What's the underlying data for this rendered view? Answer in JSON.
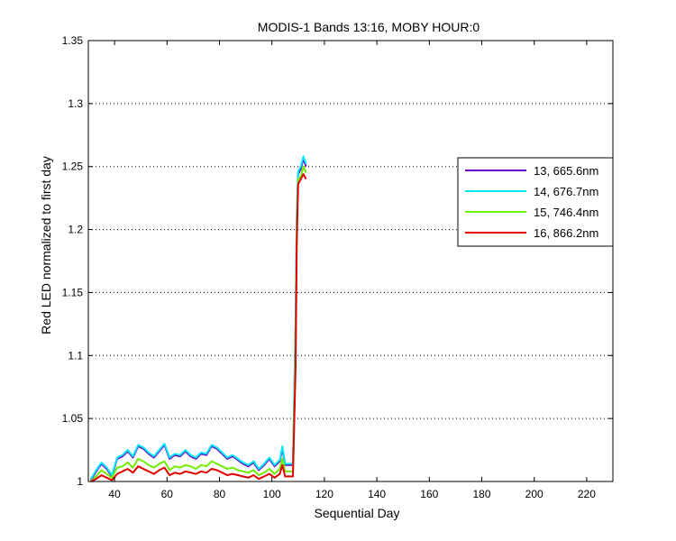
{
  "chart_data": {
    "type": "line",
    "title": "MODIS-1 Bands 13:16, MOBY HOUR:0",
    "xlabel": "Sequential Day",
    "ylabel": "Red LED normalized to first day",
    "xlim": [
      30,
      230
    ],
    "ylim": [
      1,
      1.35
    ],
    "xticks": [
      40,
      60,
      80,
      100,
      120,
      140,
      160,
      180,
      200,
      220
    ],
    "yticks": [
      1,
      1.05,
      1.1,
      1.15,
      1.2,
      1.25,
      1.3,
      1.35
    ],
    "xtick_labels": [
      "40",
      "60",
      "80",
      "100",
      "120",
      "140",
      "160",
      "180",
      "200",
      "220"
    ],
    "ytick_labels": [
      "1",
      "1.05",
      "1.1",
      "1.15",
      "1.2",
      "1.25",
      "1.3",
      "1.35"
    ],
    "grid": "y-dotted",
    "legend_position": "right",
    "x": [
      31,
      33,
      35,
      37,
      39,
      41,
      43,
      45,
      47,
      49,
      51,
      53,
      55,
      57,
      59,
      61,
      63,
      65,
      67,
      69,
      71,
      73,
      75,
      77,
      79,
      81,
      83,
      85,
      87,
      89,
      91,
      93,
      95,
      97,
      99,
      101,
      103,
      104,
      105,
      106,
      107,
      108,
      109,
      109.5,
      110,
      111,
      112,
      113
    ],
    "series": [
      {
        "name": "13, 665.6nm",
        "color": "#7000c8",
        "values": [
          1.001,
          1.008,
          1.014,
          1.01,
          1.004,
          1.018,
          1.02,
          1.024,
          1.019,
          1.028,
          1.026,
          1.022,
          1.019,
          1.024,
          1.029,
          1.018,
          1.021,
          1.02,
          1.024,
          1.02,
          1.018,
          1.022,
          1.021,
          1.028,
          1.026,
          1.022,
          1.018,
          1.02,
          1.017,
          1.014,
          1.012,
          1.015,
          1.009,
          1.013,
          1.018,
          1.012,
          1.016,
          1.026,
          1.013,
          1.013,
          1.013,
          1.013,
          1.12,
          1.21,
          1.244,
          1.248,
          1.256,
          1.25
        ]
      },
      {
        "name": "14, 676.7nm",
        "color": "#00e8f8",
        "values": [
          1.002,
          1.009,
          1.015,
          1.011,
          1.005,
          1.019,
          1.021,
          1.025,
          1.02,
          1.029,
          1.027,
          1.023,
          1.02,
          1.025,
          1.03,
          1.019,
          1.022,
          1.021,
          1.025,
          1.021,
          1.019,
          1.023,
          1.022,
          1.029,
          1.027,
          1.023,
          1.019,
          1.021,
          1.018,
          1.015,
          1.013,
          1.016,
          1.01,
          1.014,
          1.019,
          1.013,
          1.017,
          1.028,
          1.014,
          1.014,
          1.014,
          1.014,
          1.125,
          1.215,
          1.246,
          1.25,
          1.258,
          1.252
        ]
      },
      {
        "name": "15, 746.4nm",
        "color": "#70ee00",
        "values": [
          1.0,
          1.004,
          1.009,
          1.006,
          1.003,
          1.011,
          1.012,
          1.015,
          1.011,
          1.018,
          1.016,
          1.013,
          1.011,
          1.014,
          1.016,
          1.009,
          1.012,
          1.011,
          1.013,
          1.012,
          1.01,
          1.013,
          1.012,
          1.016,
          1.014,
          1.012,
          1.01,
          1.011,
          1.009,
          1.008,
          1.007,
          1.009,
          1.005,
          1.007,
          1.01,
          1.006,
          1.01,
          1.018,
          1.008,
          1.008,
          1.008,
          1.008,
          1.1,
          1.2,
          1.24,
          1.242,
          1.25,
          1.245
        ]
      },
      {
        "name": "16, 866.2nm",
        "color": "#e00000",
        "values": [
          1.0,
          1.002,
          1.005,
          1.003,
          1.001,
          1.006,
          1.008,
          1.01,
          1.007,
          1.012,
          1.01,
          1.008,
          1.006,
          1.009,
          1.011,
          1.005,
          1.007,
          1.006,
          1.008,
          1.007,
          1.006,
          1.008,
          1.007,
          1.01,
          1.009,
          1.007,
          1.005,
          1.006,
          1.005,
          1.004,
          1.003,
          1.005,
          1.002,
          1.004,
          1.006,
          1.003,
          1.006,
          1.013,
          1.004,
          1.004,
          1.004,
          1.004,
          1.09,
          1.19,
          1.236,
          1.24,
          1.244,
          1.24
        ]
      }
    ]
  }
}
